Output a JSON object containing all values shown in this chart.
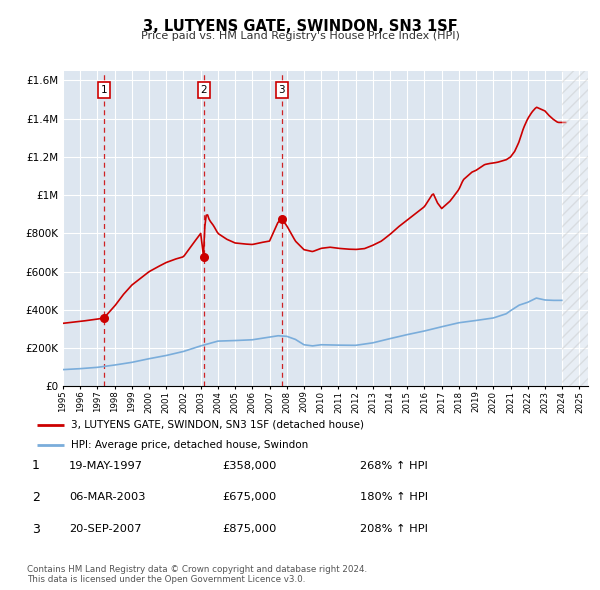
{
  "title": "3, LUTYENS GATE, SWINDON, SN3 1SF",
  "subtitle": "Price paid vs. HM Land Registry's House Price Index (HPI)",
  "plot_bg_color": "#dde6f0",
  "grid_color": "#ffffff",
  "red_color": "#cc0000",
  "blue_color": "#7aaddb",
  "ylim": [
    0,
    1650000
  ],
  "xlim_start": 1995,
  "xlim_end": 2025.5,
  "sale_dates": [
    1997.37,
    2003.17,
    2007.72
  ],
  "sale_prices": [
    358000,
    675000,
    875000
  ],
  "sale_labels": [
    "1",
    "2",
    "3"
  ],
  "legend_entries": [
    "3, LUTYENS GATE, SWINDON, SN3 1SF (detached house)",
    "HPI: Average price, detached house, Swindon"
  ],
  "table_rows": [
    {
      "label": "1",
      "date": "19-MAY-1997",
      "price": "£358,000",
      "change": "268% ↑ HPI"
    },
    {
      "label": "2",
      "date": "06-MAR-2003",
      "price": "£675,000",
      "change": "180% ↑ HPI"
    },
    {
      "label": "3",
      "date": "20-SEP-2007",
      "price": "£875,000",
      "change": "208% ↑ HPI"
    }
  ],
  "footer": "Contains HM Land Registry data © Crown copyright and database right 2024.\nThis data is licensed under the Open Government Licence v3.0.",
  "ytick_labels": [
    "£0",
    "£200K",
    "£400K",
    "£600K",
    "£800K",
    "£1M",
    "£1.2M",
    "£1.4M",
    "£1.6M"
  ],
  "ytick_values": [
    0,
    200000,
    400000,
    600000,
    800000,
    1000000,
    1200000,
    1400000,
    1600000
  ]
}
